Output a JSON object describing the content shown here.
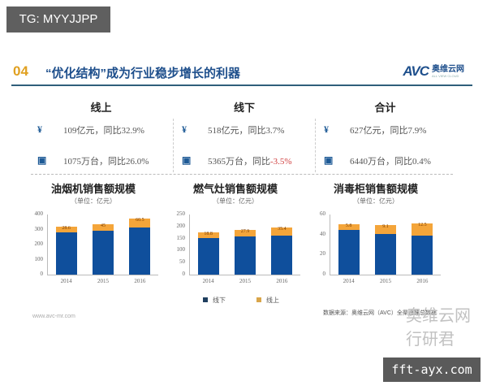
{
  "badges": {
    "top_left": "TG: MYYJJPP",
    "bottom_right": "fft-ayx.com"
  },
  "header": {
    "number": "04",
    "title": "“优化结构”成为行业稳步增长的利器",
    "logo_text": "AVC",
    "logo_cn": "奥维云网",
    "logo_sub": "ALL VIEW CLOUD"
  },
  "summary": [
    {
      "title": "线上",
      "sales": "109亿元，同比32.9%",
      "volume": "1075万台，同比26.0%",
      "volume_neg": ""
    },
    {
      "title": "线下",
      "sales": "518亿元，同比3.7%",
      "volume": "5365万台，同比",
      "volume_neg": "-3.5%"
    },
    {
      "title": "合计",
      "sales": "627亿元，同比7.9%",
      "volume": "6440万台，同比0.4%",
      "volume_neg": ""
    }
  ],
  "icons": {
    "sales": "¥",
    "volume": "▣"
  },
  "colors": {
    "offline": "#0f4f9c",
    "online": "#f4a53a",
    "title": "#1e4f8c",
    "accent": "#e0a020",
    "negative": "#d04040"
  },
  "legend": {
    "offline": "线下",
    "online": "线上"
  },
  "source": "数据来源：奥维云网（AVC）全渠道推总数据",
  "url": "www.avc-mr.com",
  "watermark": "奥维云网 行研君",
  "chart_data": [
    {
      "type": "bar",
      "stacked": true,
      "title": "油烟机销售额规模",
      "subtitle": "（单位：亿元）",
      "categories": [
        "2014",
        "2015",
        "2016"
      ],
      "series": [
        {
          "name": "线下",
          "values": [
            282,
            290,
            311
          ]
        },
        {
          "name": "线上",
          "values": [
            28.6,
            45.0,
            60.5
          ]
        }
      ],
      "yticks": [
        "0",
        "100",
        "200",
        "300",
        "400"
      ],
      "ylim": [
        0,
        400
      ],
      "legend_position": "bottom"
    },
    {
      "type": "bar",
      "stacked": true,
      "title": "燃气灶销售额规模",
      "subtitle": "（单位：亿元）",
      "categories": [
        "2014",
        "2015",
        "2016"
      ],
      "series": [
        {
          "name": "线下",
          "values": [
            153,
            159,
            161
          ]
        },
        {
          "name": "线上",
          "values": [
            18.8,
            27.9,
            35.4
          ]
        }
      ],
      "yticks": [
        "0",
        "50",
        "100",
        "150",
        "200",
        "250"
      ],
      "ylim": [
        0,
        250
      ],
      "legend_position": "bottom"
    },
    {
      "type": "bar",
      "stacked": true,
      "title": "消毒柜销售额规模",
      "subtitle": "（单位：亿元）",
      "categories": [
        "2014",
        "2015",
        "2016"
      ],
      "series": [
        {
          "name": "线下",
          "values": [
            44.5,
            40.5,
            39.0
          ]
        },
        {
          "name": "线上",
          "values": [
            5.8,
            9.1,
            12.5
          ]
        }
      ],
      "yticks": [
        "0",
        "20",
        "40",
        "60"
      ],
      "ylim": [
        0,
        60
      ],
      "legend_position": "bottom"
    }
  ]
}
